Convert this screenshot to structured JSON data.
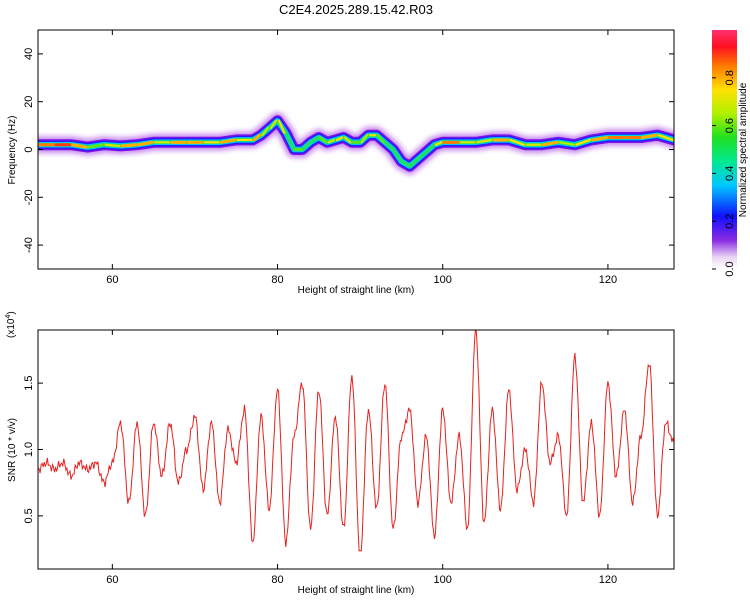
{
  "chart_data": [
    {
      "type": "heatmap",
      "title": "C2E4.2025.289.15.42.R03",
      "xlabel": "Height of straight line (km)",
      "ylabel": "Frequency (Hz)",
      "xlim": [
        51,
        128
      ],
      "ylim": [
        -50,
        50
      ],
      "xticks": [
        60,
        80,
        100,
        120
      ],
      "yticks": [
        -40,
        -20,
        0,
        20,
        40
      ],
      "ridge": {
        "description": "dominant frequency track vs height",
        "x": [
          51,
          53,
          55,
          57,
          59,
          61,
          63,
          65,
          67,
          69,
          71,
          73,
          75,
          77,
          78,
          79,
          80,
          81,
          82,
          83,
          84,
          85,
          86,
          87,
          88,
          89,
          90,
          91,
          92,
          93,
          94,
          95,
          96,
          97,
          98,
          99,
          100,
          102,
          104,
          106,
          108,
          110,
          112,
          114,
          116,
          118,
          120,
          122,
          124,
          126,
          128
        ],
        "frequency": [
          2,
          2,
          2,
          1,
          2,
          1.5,
          2,
          3,
          3,
          3,
          3,
          3,
          4,
          4,
          6,
          9,
          12,
          7,
          0,
          0,
          3,
          5,
          3,
          4,
          5,
          3,
          3,
          6,
          6,
          3,
          0,
          -5,
          -7,
          -4,
          -1,
          2,
          3,
          3,
          3,
          4,
          4,
          2,
          2,
          3,
          2,
          4,
          5,
          5,
          5,
          6,
          4
        ],
        "amplitude": [
          0.85,
          0.9,
          0.8,
          0.6,
          0.7,
          0.8,
          0.8,
          0.7,
          0.8,
          0.8,
          0.75,
          0.8,
          0.75,
          0.8,
          0.65,
          0.7,
          0.75,
          0.5,
          0.6,
          0.55,
          0.55,
          0.6,
          0.7,
          0.75,
          0.7,
          0.6,
          0.65,
          0.7,
          0.6,
          0.55,
          0.5,
          0.55,
          0.45,
          0.55,
          0.55,
          0.75,
          0.85,
          0.7,
          0.7,
          0.8,
          0.75,
          0.7,
          0.8,
          0.65,
          0.75,
          0.8,
          0.85,
          0.85,
          0.8,
          0.75,
          0.7
        ]
      }
    },
    {
      "type": "line",
      "xlabel": "Height of straight line (km)",
      "ylabel": "SNR (10 * v/v)",
      "multiplier_label": "(x10",
      "multiplier_exp": "4",
      "multiplier_close": ")",
      "xlim": [
        51,
        128
      ],
      "ylim": [
        0.1,
        1.9
      ],
      "xticks": [
        60,
        80,
        100,
        120
      ],
      "yticks": [
        0.5,
        1.0,
        1.5
      ],
      "ytick_labels": [
        "0.5",
        "1.0",
        "1.5"
      ],
      "color": "#e8201e",
      "series": [
        {
          "name": "SNR",
          "x": [
            51,
            52,
            53,
            54,
            55,
            56,
            57,
            58,
            59,
            60,
            61,
            62,
            63,
            64,
            65,
            66,
            67,
            68,
            69,
            70,
            71,
            72,
            73,
            74,
            75,
            76,
            77,
            78,
            79,
            80,
            81,
            82,
            83,
            84,
            85,
            86,
            87,
            88,
            89,
            90,
            91,
            92,
            93,
            94,
            95,
            96,
            97,
            98,
            99,
            100,
            101,
            102,
            103,
            104,
            105,
            106,
            107,
            108,
            109,
            110,
            111,
            112,
            113,
            114,
            115,
            116,
            117,
            118,
            119,
            120,
            121,
            122,
            123,
            124,
            125,
            126,
            127,
            128
          ],
          "values": [
            0.85,
            0.9,
            0.85,
            0.9,
            0.8,
            0.9,
            0.85,
            0.9,
            0.75,
            0.9,
            1.2,
            0.6,
            1.2,
            0.5,
            1.2,
            0.8,
            1.2,
            0.75,
            1.0,
            1.25,
            0.7,
            1.2,
            0.6,
            1.15,
            0.9,
            1.3,
            0.3,
            1.25,
            0.55,
            1.45,
            0.3,
            1.1,
            1.5,
            0.4,
            1.45,
            0.5,
            1.25,
            0.4,
            1.55,
            0.2,
            1.3,
            0.55,
            1.5,
            0.4,
            1.1,
            1.3,
            0.6,
            1.1,
            0.35,
            1.3,
            0.6,
            1.1,
            0.4,
            1.9,
            0.45,
            1.3,
            0.55,
            1.45,
            0.7,
            1.0,
            0.6,
            1.5,
            0.9,
            1.1,
            0.5,
            1.7,
            0.6,
            1.2,
            0.5,
            1.5,
            0.8,
            1.3,
            0.6,
            1.1,
            1.65,
            0.5,
            1.2,
            1.05
          ]
        }
      ]
    }
  ],
  "colorbar": {
    "label": "Normalized spectral amplitude",
    "tick_labels": [
      "0.0",
      "0.2",
      "0.4",
      "0.6",
      "0.8"
    ],
    "tick_values": [
      0.0,
      0.2,
      0.4,
      0.6,
      0.8
    ]
  }
}
